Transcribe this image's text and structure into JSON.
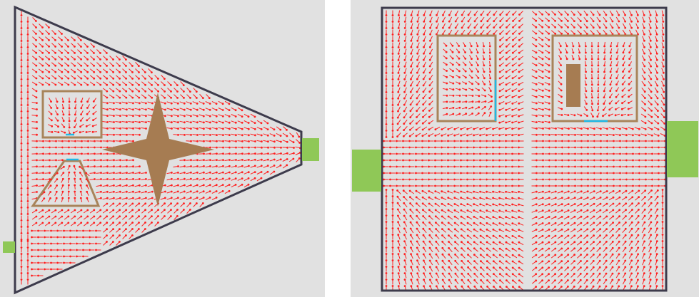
{
  "colors": {
    "background": "#e1e1e1",
    "wall": "#3d3b4c",
    "obstacle_outline": "#a8845a",
    "obstacle_fill": "#a67c52",
    "exit": "#8fc857",
    "arrow": "#ff1f1f",
    "highlight": "#1fb8e6"
  },
  "panels": [
    {
      "name": "triangle-room",
      "obstacles": [
        "rectangle-outline",
        "trapezoid-outline",
        "four-point-star"
      ],
      "exits": 2
    },
    {
      "name": "square-room",
      "obstacles": [
        "rectangle-outline",
        "rectangle-outline",
        "solid-pillar"
      ],
      "exits": 2
    }
  ]
}
